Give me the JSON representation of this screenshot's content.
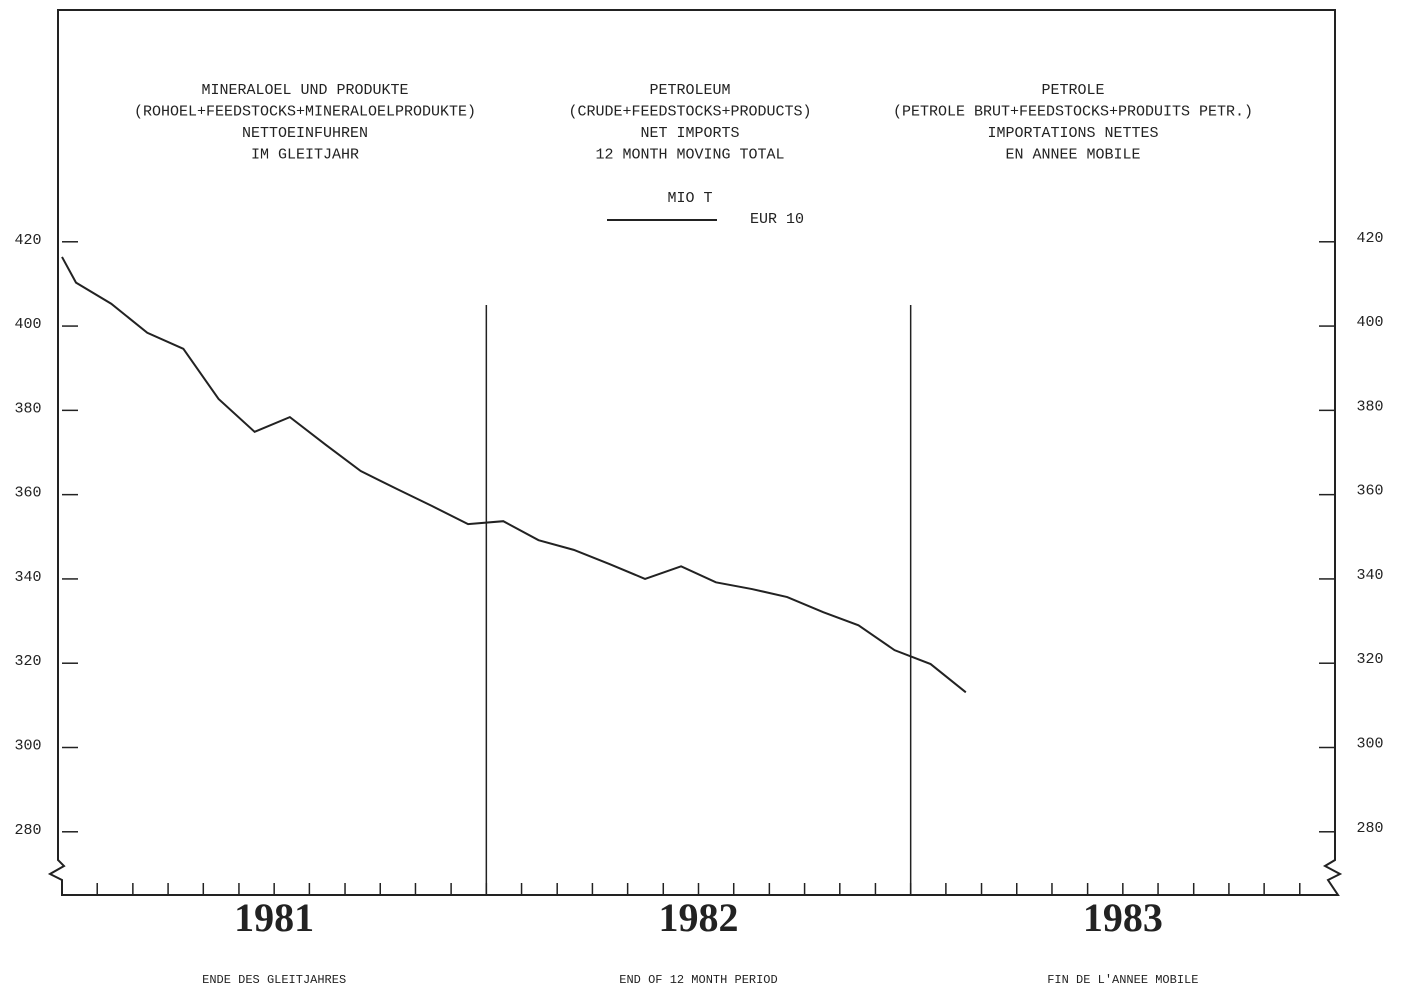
{
  "chart_data": {
    "type": "line",
    "title_blocks": [
      [
        "MINERALOEL UND PRODUKTE",
        "(ROHOEL+FEEDSTOCKS+MINERALOELPRODUKTE)",
        "NETTOEINFUHREN",
        "IM GLEITJAHR"
      ],
      [
        "PETROLEUM",
        "(CRUDE+FEEDSTOCKS+PRODUCTS)",
        "NET IMPORTS",
        "12 MONTH MOVING TOTAL"
      ],
      [
        "PETROLE",
        "(PETROLE BRUT+FEEDSTOCKS+PRODUITS PETR.)",
        "IMPORTATIONS NETTES",
        "EN ANNEE MOBILE"
      ]
    ],
    "unit": "MIO T",
    "series": [
      {
        "name": "EUR 10",
        "color": "#222222",
        "x": [
          1981.0,
          1981.033,
          1981.116,
          1981.201,
          1981.286,
          1981.369,
          1981.454,
          1981.537,
          1981.622,
          1981.704,
          1981.79,
          1981.872,
          1981.957,
          1982.04,
          1982.123,
          1982.206,
          1982.291,
          1982.374,
          1982.459,
          1982.541,
          1982.626,
          1982.709,
          1982.794,
          1982.877,
          1982.962,
          1983.047,
          1983.13
        ],
        "values": [
          416.4,
          410.3,
          405.3,
          398.4,
          394.6,
          382.7,
          374.9,
          378.4,
          371.8,
          365.6,
          361.3,
          357.3,
          353,
          353.7,
          349.2,
          346.9,
          343.5,
          340,
          343,
          339.2,
          337.6,
          335.7,
          332.1,
          329,
          323.1,
          319.8,
          313.1
        ]
      }
    ],
    "xlim": [
      1981,
      1984
    ],
    "xticks": [
      {
        "value": 1981.5,
        "label": "1981"
      },
      {
        "value": 1982.5,
        "label": "1982"
      },
      {
        "value": 1983.5,
        "label": "1983"
      }
    ],
    "x_minor_ticks": [
      1981.083,
      1981.167,
      1981.25,
      1981.333,
      1981.417,
      1981.5,
      1981.583,
      1981.667,
      1981.75,
      1981.833,
      1981.917,
      1982,
      1982.083,
      1982.167,
      1982.25,
      1982.333,
      1982.417,
      1982.5,
      1982.583,
      1982.667,
      1982.75,
      1982.833,
      1982.917,
      1983,
      1983.083,
      1983.167,
      1983.25,
      1983.333,
      1983.417,
      1983.5,
      1983.583,
      1983.667,
      1983.75,
      1983.833,
      1983.917
    ],
    "vlines": [
      1982,
      1983
    ],
    "ylim": [
      265,
      475
    ],
    "yticks": [
      280,
      300,
      320,
      340,
      360,
      380,
      400,
      420
    ],
    "footer_labels": [
      "ENDE DES GLEITJAHRES",
      "END OF 12 MONTH PERIOD",
      "FIN DE L'ANNEE MOBILE"
    ]
  }
}
